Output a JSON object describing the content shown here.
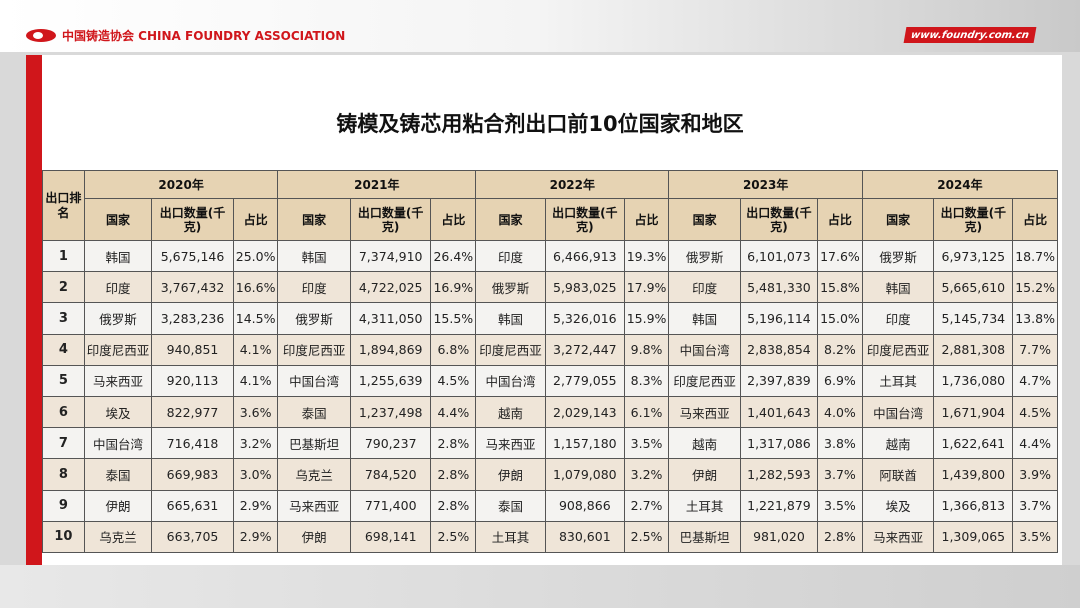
{
  "header": {
    "logo_text": "中国铸造协会 CHINA FOUNDRY ASSOCIATION",
    "site": "www.foundry.com.cn"
  },
  "title": "铸模及铸芯用粘合剂出口前10位国家和地区",
  "table": {
    "rank_header": "出口排名",
    "sub_headers": {
      "country": "国家",
      "qty": "出口数量(千克)",
      "pct": "占比"
    },
    "years": [
      "2020年",
      "2021年",
      "2022年",
      "2023年",
      "2024年"
    ],
    "rows": [
      {
        "rank": "1",
        "cells": [
          [
            "韩国",
            "5,675,146",
            "25.0%"
          ],
          [
            "韩国",
            "7,374,910",
            "26.4%"
          ],
          [
            "印度",
            "6,466,913",
            "19.3%"
          ],
          [
            "俄罗斯",
            "6,101,073",
            "17.6%"
          ],
          [
            "俄罗斯",
            "6,973,125",
            "18.7%"
          ]
        ]
      },
      {
        "rank": "2",
        "cells": [
          [
            "印度",
            "3,767,432",
            "16.6%"
          ],
          [
            "印度",
            "4,722,025",
            "16.9%"
          ],
          [
            "俄罗斯",
            "5,983,025",
            "17.9%"
          ],
          [
            "印度",
            "5,481,330",
            "15.8%"
          ],
          [
            "韩国",
            "5,665,610",
            "15.2%"
          ]
        ]
      },
      {
        "rank": "3",
        "cells": [
          [
            "俄罗斯",
            "3,283,236",
            "14.5%"
          ],
          [
            "俄罗斯",
            "4,311,050",
            "15.5%"
          ],
          [
            "韩国",
            "5,326,016",
            "15.9%"
          ],
          [
            "韩国",
            "5,196,114",
            "15.0%"
          ],
          [
            "印度",
            "5,145,734",
            "13.8%"
          ]
        ]
      },
      {
        "rank": "4",
        "cells": [
          [
            "印度尼西亚",
            "940,851",
            "4.1%"
          ],
          [
            "印度尼西亚",
            "1,894,869",
            "6.8%"
          ],
          [
            "印度尼西亚",
            "3,272,447",
            "9.8%"
          ],
          [
            "中国台湾",
            "2,838,854",
            "8.2%"
          ],
          [
            "印度尼西亚",
            "2,881,308",
            "7.7%"
          ]
        ]
      },
      {
        "rank": "5",
        "cells": [
          [
            "马来西亚",
            "920,113",
            "4.1%"
          ],
          [
            "中国台湾",
            "1,255,639",
            "4.5%"
          ],
          [
            "中国台湾",
            "2,779,055",
            "8.3%"
          ],
          [
            "印度尼西亚",
            "2,397,839",
            "6.9%"
          ],
          [
            "土耳其",
            "1,736,080",
            "4.7%"
          ]
        ]
      },
      {
        "rank": "6",
        "cells": [
          [
            "埃及",
            "822,977",
            "3.6%"
          ],
          [
            "泰国",
            "1,237,498",
            "4.4%"
          ],
          [
            "越南",
            "2,029,143",
            "6.1%"
          ],
          [
            "马来西亚",
            "1,401,643",
            "4.0%"
          ],
          [
            "中国台湾",
            "1,671,904",
            "4.5%"
          ]
        ]
      },
      {
        "rank": "7",
        "cells": [
          [
            "中国台湾",
            "716,418",
            "3.2%"
          ],
          [
            "巴基斯坦",
            "790,237",
            "2.8%"
          ],
          [
            "马来西亚",
            "1,157,180",
            "3.5%"
          ],
          [
            "越南",
            "1,317,086",
            "3.8%"
          ],
          [
            "越南",
            "1,622,641",
            "4.4%"
          ]
        ]
      },
      {
        "rank": "8",
        "cells": [
          [
            "泰国",
            "669,983",
            "3.0%"
          ],
          [
            "乌克兰",
            "784,520",
            "2.8%"
          ],
          [
            "伊朗",
            "1,079,080",
            "3.2%"
          ],
          [
            "伊朗",
            "1,282,593",
            "3.7%"
          ],
          [
            "阿联酋",
            "1,439,800",
            "3.9%"
          ]
        ]
      },
      {
        "rank": "9",
        "cells": [
          [
            "伊朗",
            "665,631",
            "2.9%"
          ],
          [
            "马来西亚",
            "771,400",
            "2.8%"
          ],
          [
            "泰国",
            "908,866",
            "2.7%"
          ],
          [
            "土耳其",
            "1,221,879",
            "3.5%"
          ],
          [
            "埃及",
            "1,366,813",
            "3.7%"
          ]
        ]
      },
      {
        "rank": "10",
        "cells": [
          [
            "乌克兰",
            "663,705",
            "2.9%"
          ],
          [
            "伊朗",
            "698,141",
            "2.5%"
          ],
          [
            "土耳其",
            "830,601",
            "2.5%"
          ],
          [
            "巴基斯坦",
            "981,020",
            "2.8%"
          ],
          [
            "马来西亚",
            "1,309,065",
            "3.5%"
          ]
        ]
      }
    ]
  },
  "colors": {
    "brand_red": "#d0161b",
    "header_bg": "#e6d3b3",
    "row_alt": "#efe5d8"
  }
}
